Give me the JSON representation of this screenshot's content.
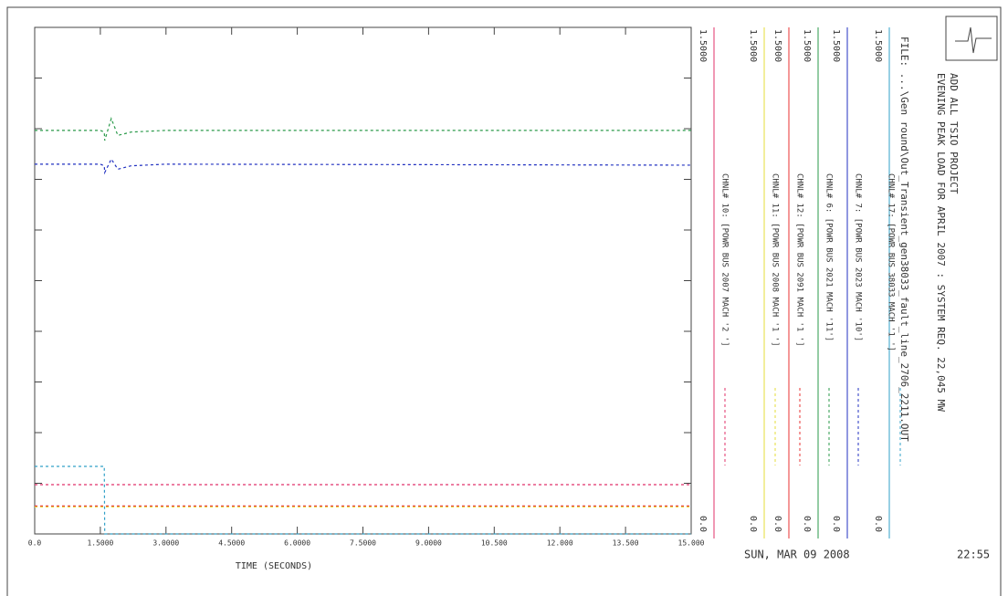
{
  "chart_data": {
    "type": "line",
    "title": "EVENING PEAK LOAD FOR APRIL 2007 : SYSTEM REQ. 22,045 MW",
    "subtitle": "ADD ALL TSIO PROJECT",
    "file": "FILE: ...\\Gen round\\Out_Transient_gen38033_fault_line_2706_2211.OUT",
    "x_label": "TIME (SECONDS)",
    "date": "SUN, MAR 09 2008",
    "time": "22:55",
    "x": [
      0,
      1.5,
      1.59,
      1.6,
      1.75,
      1.9,
      2.2,
      3,
      15
    ],
    "xlim": [
      0,
      15
    ],
    "xticks": [
      {
        "value": 0,
        "label": "0.0"
      },
      {
        "value": 1.5,
        "label": "1.5000"
      },
      {
        "value": 3,
        "label": "3.0000"
      },
      {
        "value": 4.5,
        "label": "4.5000"
      },
      {
        "value": 6,
        "label": "6.0000"
      },
      {
        "value": 7.5,
        "label": "7.5000"
      },
      {
        "value": 9,
        "label": "9.0000"
      },
      {
        "value": 10.5,
        "label": "10.500"
      },
      {
        "value": 12,
        "label": "12.000"
      },
      {
        "value": 13.5,
        "label": "13.500"
      },
      {
        "value": 15,
        "label": "15.000"
      }
    ],
    "ylim": [
      0,
      1.5
    ],
    "yticks": [
      0,
      0.15,
      0.3,
      0.45,
      0.6,
      0.75,
      0.9,
      1.05,
      1.2,
      1.35,
      1.5
    ],
    "scale": [
      {
        "value": 0,
        "label": "0.0"
      },
      {
        "value": 1.5,
        "label": "1.5000"
      }
    ],
    "series": [
      {
        "name": "CHNL# 10: [POWR BUS 2007 MACH '2 ']",
        "color": "#e0306a",
        "values": [
          0.146,
          0.146,
          0.146,
          0.146,
          0.146,
          0.146,
          0.146,
          0.146,
          0.146
        ]
      },
      {
        "name": "CHNL# 11: [POWR BUS 2008 MACH '1 ']",
        "color": "#e6dc3a",
        "values": [
          0.08,
          0.08,
          0.08,
          0.08,
          0.08,
          0.08,
          0.08,
          0.08,
          0.08
        ]
      },
      {
        "name": "CHNL# 12: [POWR BUS 2091 MACH '1 ']",
        "color": "#e83030",
        "values": [
          0.083,
          0.083,
          0.083,
          0.083,
          0.083,
          0.083,
          0.083,
          0.083,
          0.083
        ]
      },
      {
        "name": "CHNL# 6: [POWR BUS 2021 MACH '11']",
        "color": "#2a9a4a",
        "values": [
          1.195,
          1.195,
          1.19,
          1.165,
          1.23,
          1.18,
          1.19,
          1.195,
          1.195
        ]
      },
      {
        "name": "CHNL# 7: [POWR BUS 2023 MACH '10']",
        "color": "#2030c0",
        "values": [
          1.095,
          1.095,
          1.09,
          1.07,
          1.11,
          1.08,
          1.09,
          1.095,
          1.092
        ]
      },
      {
        "name": "CHNL# 17: [POWR BUS 38033 MACH '1 ']",
        "color": "#30a0c8",
        "values": [
          0.2,
          0.2,
          0.2,
          0,
          0,
          0,
          0,
          0,
          0
        ]
      }
    ]
  }
}
